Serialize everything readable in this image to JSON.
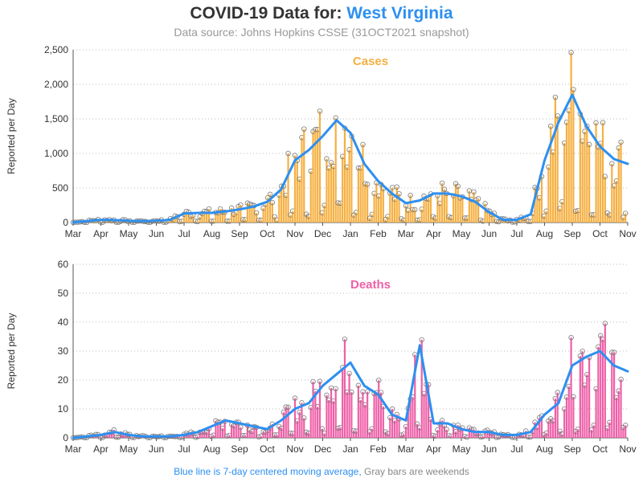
{
  "header": {
    "title_prefix": "COVID-19 Data for:",
    "state": "West Virginia",
    "subtitle": "Data source: Johns Hopkins CSSE (31OCT2021 snapshot)"
  },
  "footer": {
    "legend_blue": "Blue line is 7-day centered moving average,",
    "legend_gray": "Gray bars are weekends"
  },
  "colors": {
    "cases_bar": "#f5b042",
    "deaths_bar": "#ee60a8",
    "moving_average": "#2d8ff0",
    "marker": "#7a7a7a"
  },
  "chart_data": [
    {
      "type": "bar",
      "title": "Cases",
      "ylabel": "Reported per Day",
      "x_ticks": [
        "Mar",
        "Apr",
        "May",
        "Jun",
        "Jul",
        "Aug",
        "Sep",
        "Oct",
        "Nov",
        "Dec",
        "Jan",
        "Feb",
        "Mar",
        "Apr",
        "May",
        "Jun",
        "Jul",
        "Aug",
        "Sep",
        "Oct",
        "Nov"
      ],
      "y_ticks": [
        "0",
        "500",
        "1,000",
        "1,500",
        "2,000",
        "2,500"
      ],
      "ylim": [
        0,
        2500
      ],
      "grid": true,
      "series": [
        {
          "name": "7-day centered moving average",
          "x_month_index": [
            0,
            0.5,
            1,
            1.5,
            2,
            2.5,
            3,
            3.5,
            4,
            4.5,
            5,
            5.5,
            6,
            6.5,
            7,
            7.5,
            8,
            8.5,
            9,
            9.5,
            10,
            10.5,
            11,
            11.5,
            12,
            12.5,
            13,
            13.5,
            14,
            14.5,
            15,
            15.5,
            16,
            16.5,
            17,
            17.5,
            18,
            18.5,
            19,
            19.5,
            20
          ],
          "values": [
            2,
            20,
            40,
            35,
            25,
            20,
            25,
            40,
            130,
            140,
            140,
            160,
            190,
            230,
            300,
            480,
            900,
            1050,
            1250,
            1480,
            1300,
            850,
            600,
            420,
            280,
            320,
            420,
            420,
            380,
            300,
            150,
            40,
            40,
            120,
            900,
            1450,
            1850,
            1400,
            1100,
            920,
            850
          ]
        }
      ]
    },
    {
      "type": "bar",
      "title": "Deaths",
      "ylabel": "Reported per Day",
      "x_ticks": [
        "Mar",
        "Apr",
        "May",
        "Jun",
        "Jul",
        "Aug",
        "Sep",
        "Oct",
        "Nov",
        "Dec",
        "Jan",
        "Feb",
        "Mar",
        "Apr",
        "May",
        "Jun",
        "Jul",
        "Aug",
        "Sep",
        "Oct",
        "Nov"
      ],
      "y_ticks": [
        "0",
        "10",
        "20",
        "30",
        "40",
        "50",
        "60"
      ],
      "ylim": [
        0,
        60
      ],
      "grid": true,
      "series": [
        {
          "name": "7-day centered moving average",
          "x_month_index": [
            0,
            0.5,
            1,
            1.5,
            2,
            2.5,
            3,
            3.5,
            4,
            4.5,
            5,
            5.5,
            6,
            6.5,
            7,
            7.5,
            8,
            8.5,
            9,
            9.5,
            10,
            10.5,
            11,
            11.5,
            12,
            12.5,
            13,
            13.5,
            14,
            14.5,
            15,
            15.5,
            16,
            16.5,
            17,
            17.5,
            18,
            18.5,
            19,
            19.5,
            20
          ],
          "values": [
            0,
            0.5,
            1,
            2,
            1,
            0.5,
            0.5,
            0.5,
            1,
            2,
            4,
            6,
            5,
            4,
            3,
            6,
            10,
            12,
            18,
            22,
            26,
            18,
            15,
            8,
            6,
            32,
            5,
            5,
            3,
            2,
            2,
            1,
            1,
            2,
            8,
            12,
            25,
            28,
            30,
            25,
            23
          ]
        }
      ]
    }
  ]
}
